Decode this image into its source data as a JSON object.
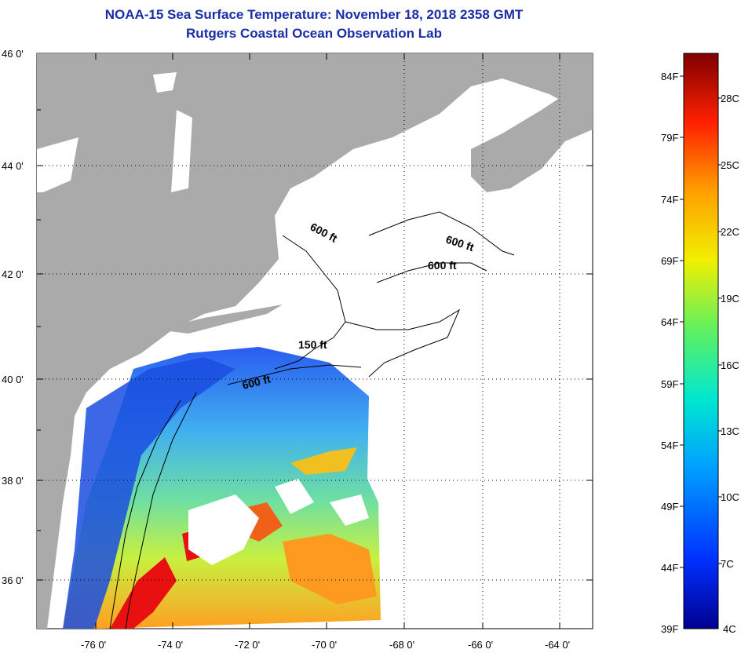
{
  "header": {
    "title": "NOAA-15 Sea Surface Temperature:  November 18, 2018 2358 GMT",
    "subtitle": "Rutgers Coastal Ocean Observation Lab"
  },
  "map": {
    "lat_labels": [
      "46 0'",
      "44 0'",
      "42 0'",
      "40 0'",
      "38 0'",
      "36 0'"
    ],
    "lon_labels": [
      "-76 0'",
      "-74 0'",
      "-72 0'",
      "-70 0'",
      "-68 0'",
      "-66 0'",
      "-64 0'"
    ],
    "contours": [
      "600 ft",
      "600 ft",
      "600 ft",
      "150 ft",
      "600 ft"
    ],
    "colors": {
      "land": "#aaaaaa",
      "cloud": "#ffffff",
      "warm": "#e81010",
      "cool": "#1a4ee0"
    }
  },
  "colorbar": {
    "fahrenheit": [
      "84F",
      "79F",
      "74F",
      "69F",
      "64F",
      "59F",
      "54F",
      "49F",
      "44F",
      "39F"
    ],
    "celsius": [
      "28C",
      "25C",
      "22C",
      "19C",
      "16C",
      "13C",
      "10C",
      "7C",
      "4C"
    ]
  }
}
